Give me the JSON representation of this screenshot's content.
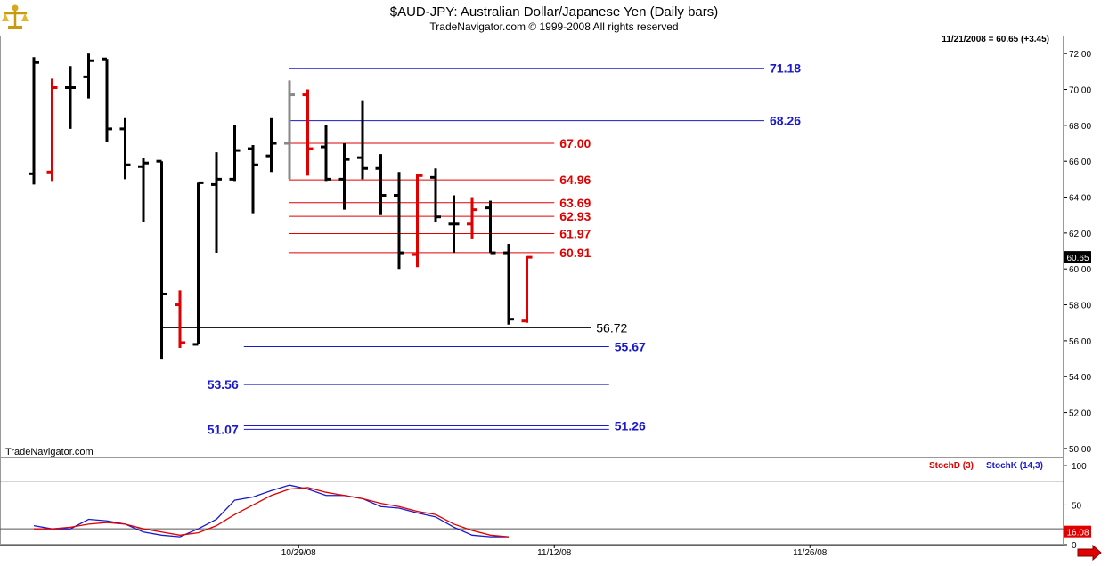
{
  "header": {
    "title": "$AUD-JPY:  Australian Dollar/Japanese Yen  (Daily bars)",
    "subtitle": "TradeNavigator.com © 1999-2008 All rights reserved",
    "last_info": "11/21/2008 = 60.65 (+3.45)",
    "last_price": "60.65",
    "watermark": "TradeNavigator.com",
    "logo_icon": "scales-icon"
  },
  "colors": {
    "bar_default": "#000000",
    "bar_highlight": "#e00000",
    "bar_gray": "#888888",
    "level_blue": "#1a1acc",
    "level_red": "#e00000",
    "level_black": "#000000",
    "stoch_d": "#e00000",
    "stoch_k": "#1a1acc",
    "grid": "#c0c0c0",
    "arrow": "#e00000"
  },
  "chart_data": [
    {
      "type": "ohlc",
      "title": "$AUD-JPY:  Australian Dollar/Japanese Yen  (Daily bars)",
      "ylim": [
        49.5,
        73.0
      ],
      "y_ticks": [
        "72.00",
        "70.00",
        "68.00",
        "66.00",
        "64.00",
        "62.00",
        "60.00",
        "58.00",
        "56.00",
        "54.00",
        "52.00",
        "50.00"
      ],
      "x_ticks": [
        "10/29/08",
        "11/12/08",
        "11/26/08"
      ],
      "bars": [
        {
          "o": 65.3,
          "h": 71.8,
          "l": 64.7,
          "c": 71.5,
          "color": "black"
        },
        {
          "o": 65.4,
          "h": 70.6,
          "l": 64.9,
          "c": 70.1,
          "color": "red"
        },
        {
          "o": 70.1,
          "h": 71.3,
          "l": 67.8,
          "c": 70.1,
          "color": "black"
        },
        {
          "o": 70.7,
          "h": 72.0,
          "l": 69.5,
          "c": 71.6,
          "color": "black"
        },
        {
          "o": 71.7,
          "h": 71.7,
          "l": 67.1,
          "c": 67.8,
          "color": "black"
        },
        {
          "o": 67.8,
          "h": 68.4,
          "l": 65.0,
          "c": 65.8,
          "color": "black"
        },
        {
          "o": 65.7,
          "h": 66.2,
          "l": 62.6,
          "c": 65.9,
          "color": "black"
        },
        {
          "o": 66.0,
          "h": 66.0,
          "l": 55.0,
          "c": 58.6,
          "color": "black"
        },
        {
          "o": 58.0,
          "h": 58.8,
          "l": 55.6,
          "c": 55.9,
          "color": "red"
        },
        {
          "o": 55.8,
          "h": 64.8,
          "l": 55.8,
          "c": 64.8,
          "color": "black"
        },
        {
          "o": 64.7,
          "h": 66.5,
          "l": 60.9,
          "c": 65.0,
          "color": "black"
        },
        {
          "o": 65.0,
          "h": 68.0,
          "l": 64.9,
          "c": 66.6,
          "color": "black"
        },
        {
          "o": 66.7,
          "h": 66.9,
          "l": 63.1,
          "c": 65.8,
          "color": "black"
        },
        {
          "o": 66.3,
          "h": 68.4,
          "l": 65.4,
          "c": 67.0,
          "color": "black"
        },
        {
          "o": 67.0,
          "h": 70.5,
          "l": 65.0,
          "c": 69.7,
          "color": "gray"
        },
        {
          "o": 69.7,
          "h": 70.0,
          "l": 65.2,
          "c": 66.7,
          "color": "red"
        },
        {
          "o": 66.8,
          "h": 68.0,
          "l": 64.9,
          "c": 65.0,
          "color": "black"
        },
        {
          "o": 65.0,
          "h": 67.0,
          "l": 63.3,
          "c": 66.1,
          "color": "black"
        },
        {
          "o": 66.2,
          "h": 69.4,
          "l": 65.0,
          "c": 65.6,
          "color": "black"
        },
        {
          "o": 65.6,
          "h": 66.4,
          "l": 63.0,
          "c": 64.1,
          "color": "black"
        },
        {
          "o": 64.1,
          "h": 65.4,
          "l": 60.0,
          "c": 60.9,
          "color": "black"
        },
        {
          "o": 60.8,
          "h": 65.3,
          "l": 60.1,
          "c": 65.2,
          "color": "red"
        },
        {
          "o": 65.1,
          "h": 65.6,
          "l": 62.6,
          "c": 62.9,
          "color": "black"
        },
        {
          "o": 62.5,
          "h": 64.1,
          "l": 60.9,
          "c": 62.5,
          "color": "black"
        },
        {
          "o": 62.5,
          "h": 64.0,
          "l": 61.7,
          "c": 63.3,
          "color": "red"
        },
        {
          "o": 63.4,
          "h": 63.8,
          "l": 60.9,
          "c": 60.9,
          "color": "black"
        },
        {
          "o": 60.9,
          "h": 61.4,
          "l": 56.9,
          "c": 57.2,
          "color": "black"
        },
        {
          "o": 57.1,
          "h": 60.7,
          "l": 57.0,
          "c": 60.65,
          "color": "red"
        }
      ],
      "levels": [
        {
          "value": 71.18,
          "label": "71.18",
          "color": "blue",
          "from": 14,
          "to": 40,
          "label_at": "right"
        },
        {
          "value": 68.26,
          "label": "68.26",
          "color": "blue",
          "from": 14,
          "to": 40,
          "label_at": "right"
        },
        {
          "value": 67.0,
          "label": "67.00",
          "color": "red",
          "from": 14,
          "to": 28.5,
          "label_at": "right"
        },
        {
          "value": 64.96,
          "label": "64.96",
          "color": "red",
          "from": 14,
          "to": 28.5,
          "label_at": "right"
        },
        {
          "value": 63.69,
          "label": "63.69",
          "color": "red",
          "from": 14,
          "to": 28.5,
          "label_at": "right"
        },
        {
          "value": 62.93,
          "label": "62.93",
          "color": "red",
          "from": 14,
          "to": 28.5,
          "label_at": "right"
        },
        {
          "value": 61.97,
          "label": "61.97",
          "color": "red",
          "from": 14,
          "to": 28.5,
          "label_at": "right"
        },
        {
          "value": 60.91,
          "label": "60.91",
          "color": "red",
          "from": 14,
          "to": 28.5,
          "label_at": "right"
        },
        {
          "value": 56.72,
          "label": "56.72",
          "color": "black",
          "from": 7,
          "to": 30.5,
          "label_at": "right"
        },
        {
          "value": 55.67,
          "label": "55.67",
          "color": "blue",
          "from": 11.5,
          "to": 31.5,
          "label_at": "right"
        },
        {
          "value": 53.56,
          "label": "53.56",
          "color": "blue",
          "from": 11.5,
          "to": 31.5,
          "label_at": "left"
        },
        {
          "value": 51.26,
          "label": "51.26",
          "color": "blue",
          "from": 11.5,
          "to": 31.5,
          "label_at": "right"
        },
        {
          "value": 51.07,
          "label": "51.07",
          "color": "blue",
          "from": 11.5,
          "to": 31.5,
          "label_at": "left"
        }
      ]
    },
    {
      "type": "line",
      "legend": [
        {
          "name": "StochD (3)",
          "color": "red"
        },
        {
          "name": "StochK (14,3)",
          "color": "blue"
        }
      ],
      "ylim": [
        0,
        110
      ],
      "y_ticks": [
        "100",
        "50",
        "0"
      ],
      "last_value": "16.08",
      "series": [
        {
          "name": "StochK (14,3)",
          "values": [
            24,
            20,
            20,
            32,
            30,
            26,
            16,
            12,
            10,
            20,
            32,
            56,
            60,
            68,
            75,
            70,
            62,
            62,
            58,
            48,
            46,
            40,
            35,
            22,
            12,
            10,
            10
          ]
        },
        {
          "name": "StochD (3)",
          "values": [
            20,
            20,
            22,
            26,
            28,
            26,
            20,
            16,
            12,
            15,
            24,
            38,
            50,
            62,
            70,
            72,
            66,
            62,
            58,
            52,
            48,
            42,
            38,
            26,
            18,
            12,
            10
          ]
        }
      ]
    }
  ]
}
